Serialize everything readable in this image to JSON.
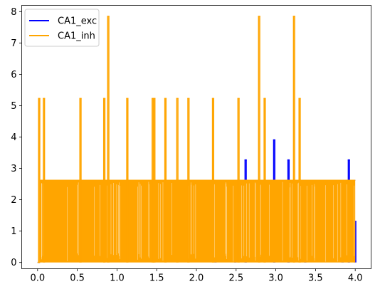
{
  "chart_data": {
    "type": "line",
    "title": "",
    "xlabel": "",
    "ylabel": "",
    "xlim": [
      -0.2,
      4.2
    ],
    "ylim": [
      -0.2,
      8.2
    ],
    "x_ticks": [
      0.0,
      0.5,
      1.0,
      1.5,
      2.0,
      2.5,
      3.0,
      3.5,
      4.0
    ],
    "x_tick_labels": [
      "0.0",
      "0.5",
      "1.0",
      "1.5",
      "2.0",
      "2.5",
      "3.0",
      "3.5",
      "4.0"
    ],
    "y_ticks": [
      0,
      1,
      2,
      3,
      4,
      5,
      6,
      7,
      8
    ],
    "y_tick_labels": [
      "0",
      "1",
      "2",
      "3",
      "4",
      "5",
      "6",
      "7",
      "8"
    ],
    "grid": false,
    "legend_position": "top-left",
    "series": [
      {
        "name": "CA1_exc",
        "color": "#0000ff",
        "baseline": 0.0,
        "start": 0.0,
        "end": 4.0,
        "dense_band_top": 2.62,
        "peaks": [
          {
            "x": 2.24,
            "y": 2.62
          },
          {
            "x": 2.49,
            "y": 1.31
          },
          {
            "x": 2.62,
            "y": 3.27
          },
          {
            "x": 2.98,
            "y": 3.91
          },
          {
            "x": 3.16,
            "y": 3.27
          },
          {
            "x": 3.37,
            "y": 2.62
          },
          {
            "x": 3.84,
            "y": 2.62
          },
          {
            "x": 3.92,
            "y": 3.27
          },
          {
            "x": 4.0,
            "y": 1.31
          }
        ]
      },
      {
        "name": "CA1_inh",
        "color": "#ffa500",
        "baseline": 0.0,
        "start": 0.0,
        "end": 4.0,
        "dense_band_top": 2.62,
        "peaks": [
          {
            "x": 0.02,
            "y": 5.23
          },
          {
            "x": 0.08,
            "y": 5.23
          },
          {
            "x": 0.54,
            "y": 5.23
          },
          {
            "x": 0.84,
            "y": 5.23
          },
          {
            "x": 0.89,
            "y": 7.85
          },
          {
            "x": 1.13,
            "y": 5.23
          },
          {
            "x": 1.45,
            "y": 5.23
          },
          {
            "x": 1.47,
            "y": 5.23
          },
          {
            "x": 1.61,
            "y": 5.23
          },
          {
            "x": 1.76,
            "y": 5.23
          },
          {
            "x": 1.9,
            "y": 5.23
          },
          {
            "x": 2.21,
            "y": 5.23
          },
          {
            "x": 2.53,
            "y": 5.23
          },
          {
            "x": 2.79,
            "y": 7.85
          },
          {
            "x": 2.86,
            "y": 5.23
          },
          {
            "x": 3.23,
            "y": 7.85
          },
          {
            "x": 3.3,
            "y": 5.23
          }
        ]
      }
    ]
  }
}
